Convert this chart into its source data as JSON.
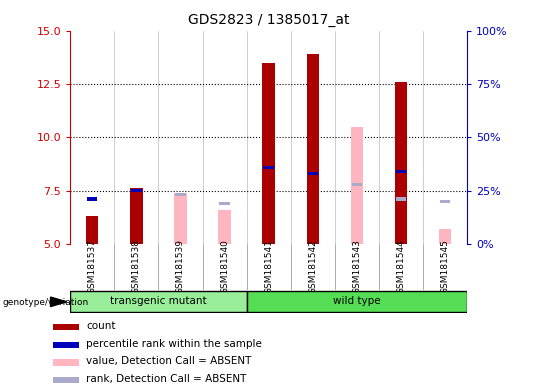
{
  "title": "GDS2823 / 1385017_at",
  "samples": [
    "GSM181537",
    "GSM181538",
    "GSM181539",
    "GSM181540",
    "GSM181541",
    "GSM181542",
    "GSM181543",
    "GSM181544",
    "GSM181545"
  ],
  "ylim": [
    5,
    15
  ],
  "yticks": [
    5,
    7.5,
    10,
    12.5,
    15
  ],
  "y2ticks_pct": [
    0,
    25,
    50,
    75,
    100
  ],
  "y2labels": [
    "0%",
    "25%",
    "50%",
    "75%",
    "100%"
  ],
  "left_tick_color": "#CC0000",
  "right_tick_color": "#0000BB",
  "dotted_lines": [
    7.5,
    10,
    12.5
  ],
  "red_counts": [
    6.3,
    7.6,
    null,
    null,
    13.5,
    13.9,
    null,
    12.6,
    null
  ],
  "blue_marks": [
    7.1,
    7.5,
    null,
    null,
    8.6,
    8.3,
    null,
    8.4,
    null
  ],
  "pink_bars": [
    null,
    null,
    7.4,
    6.6,
    null,
    null,
    10.5,
    null,
    5.7
  ],
  "lavender_marks": [
    null,
    null,
    7.3,
    6.9,
    null,
    null,
    7.8,
    7.1,
    7.0
  ],
  "red_color": "#AA0000",
  "blue_color": "#0000BB",
  "pink_color": "#FFB6C1",
  "lavender_color": "#AAAACC",
  "legend_items": [
    {
      "color": "#AA0000",
      "label": "count"
    },
    {
      "color": "#0000BB",
      "label": "percentile rank within the sample"
    },
    {
      "color": "#FFB6C1",
      "label": "value, Detection Call = ABSENT"
    },
    {
      "color": "#AAAACC",
      "label": "rank, Detection Call = ABSENT"
    }
  ]
}
